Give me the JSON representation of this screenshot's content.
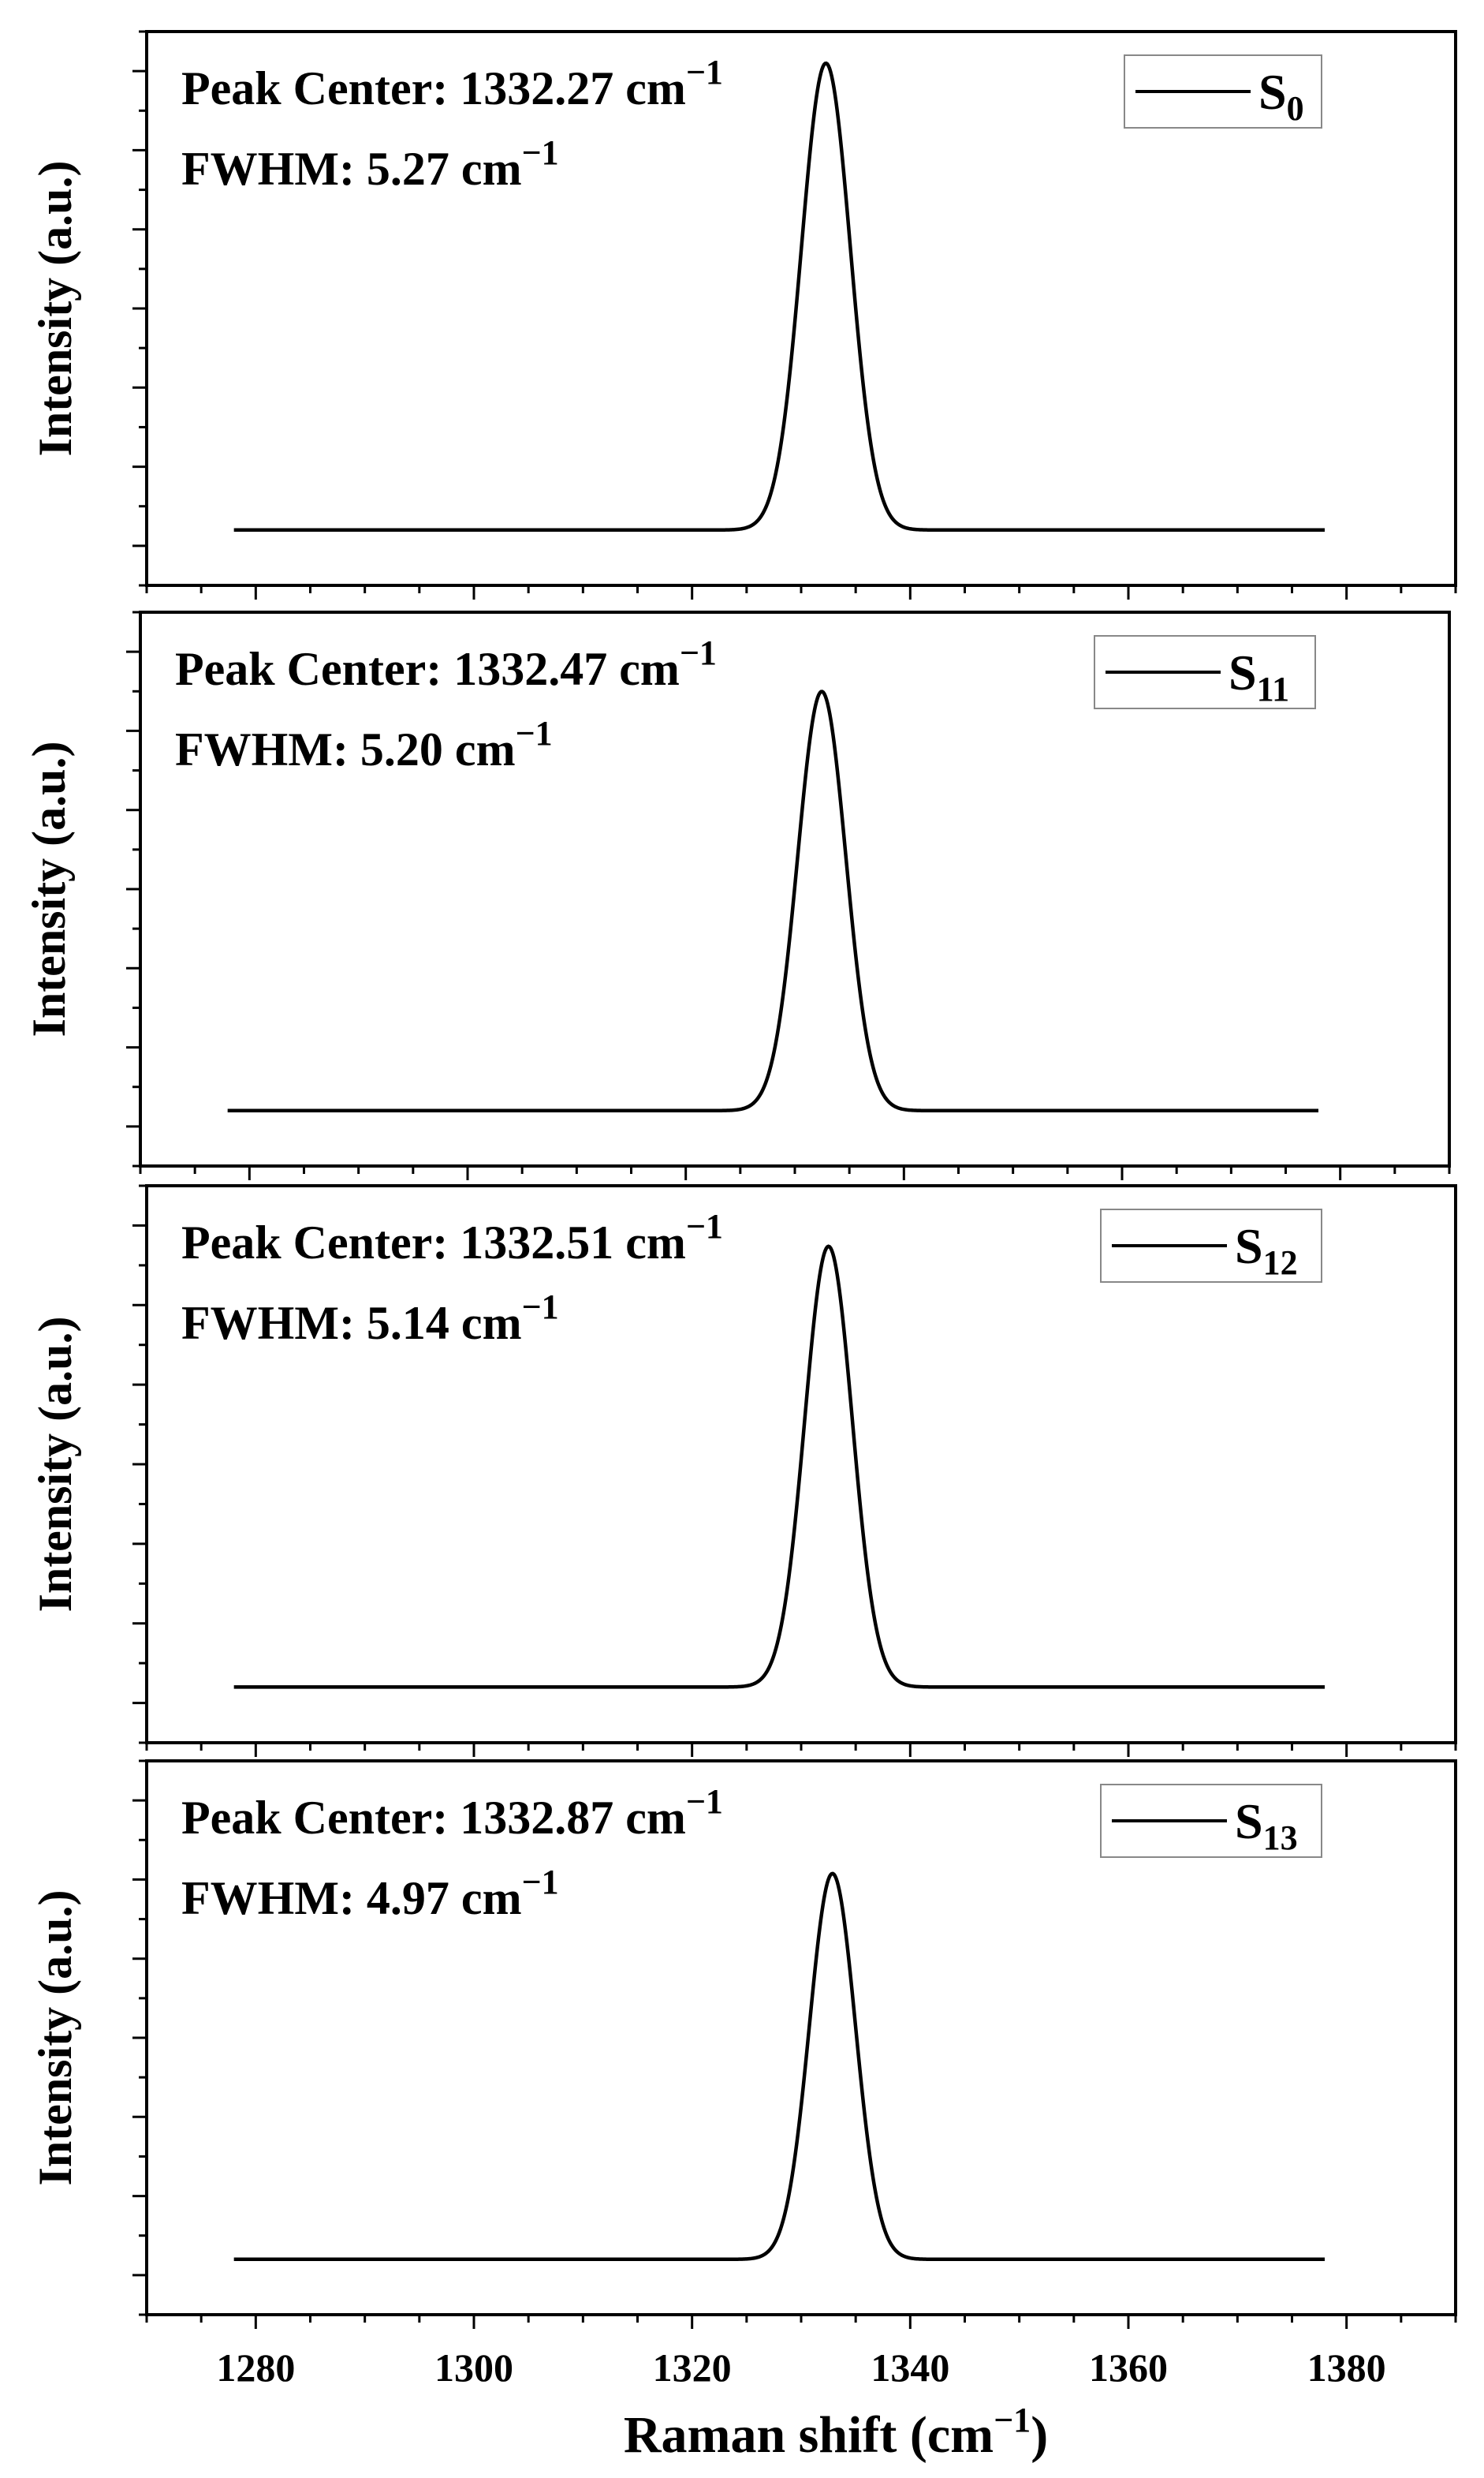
{
  "figure": {
    "ylabel": "Intensity (a.u.)",
    "xlabel": "Raman shift (cm",
    "xlabel_sup": "−1",
    "xlabel_close": ")"
  },
  "chart_data": [
    {
      "type": "line",
      "series": [
        {
          "name": "S0",
          "shape": "gaussian",
          "center": 1332.27,
          "fwhm": 5.27,
          "x_range": [
            1278,
            1378
          ],
          "peak_rel": 0.98
        }
      ],
      "legend": {
        "base": "S",
        "sub": "0",
        "placement": "top-right"
      },
      "annotation": {
        "peak_label": "Peak Center: 1332.27 cm",
        "fwhm_label": "FWHM: 5.27 cm",
        "sup": "−1"
      },
      "ylabel": "Intensity (a.u.)",
      "xlim": [
        1270,
        1390
      ],
      "ylim": [
        0,
        1
      ],
      "ytick_labels": false
    },
    {
      "type": "line",
      "series": [
        {
          "name": "S11",
          "shape": "gaussian",
          "center": 1332.47,
          "fwhm": 5.2,
          "x_range": [
            1278,
            1378
          ],
          "peak_rel": 0.88
        }
      ],
      "legend": {
        "base": "S",
        "sub": "11",
        "placement": "top-right"
      },
      "annotation": {
        "peak_label": "Peak Center: 1332.47 cm",
        "fwhm_label": "FWHM: 5.20 cm",
        "sup": "−1"
      },
      "ylabel": "Intensity (a.u.)",
      "xlim": [
        1270,
        1390
      ],
      "ylim": [
        0,
        1
      ],
      "ytick_labels": false
    },
    {
      "type": "line",
      "series": [
        {
          "name": "S12",
          "shape": "gaussian",
          "center": 1332.51,
          "fwhm": 5.14,
          "x_range": [
            1278,
            1378
          ],
          "peak_rel": 0.92
        }
      ],
      "legend": {
        "base": "S",
        "sub": "12",
        "placement": "top-right"
      },
      "annotation": {
        "peak_label": "Peak Center: 1332.51 cm",
        "fwhm_label": "FWHM: 5.14 cm",
        "sup": "−1"
      },
      "ylabel": "Intensity (a.u.)",
      "xlim": [
        1270,
        1390
      ],
      "ylim": [
        0,
        1
      ],
      "ytick_labels": false
    },
    {
      "type": "line",
      "series": [
        {
          "name": "S13",
          "shape": "gaussian",
          "center": 1332.87,
          "fwhm": 4.97,
          "x_range": [
            1278,
            1378
          ],
          "peak_rel": 0.81
        }
      ],
      "legend": {
        "base": "S",
        "sub": "13",
        "placement": "top-right"
      },
      "annotation": {
        "peak_label": "Peak Center: 1332.87 cm",
        "fwhm_label": "FWHM: 4.97 cm",
        "sup": "−1"
      },
      "ylabel": "Intensity (a.u.)",
      "xlim": [
        1270,
        1390
      ],
      "ylim": [
        0,
        1
      ],
      "xticks": [
        1280,
        1300,
        1320,
        1340,
        1360,
        1380
      ],
      "ytick_labels": false
    }
  ]
}
